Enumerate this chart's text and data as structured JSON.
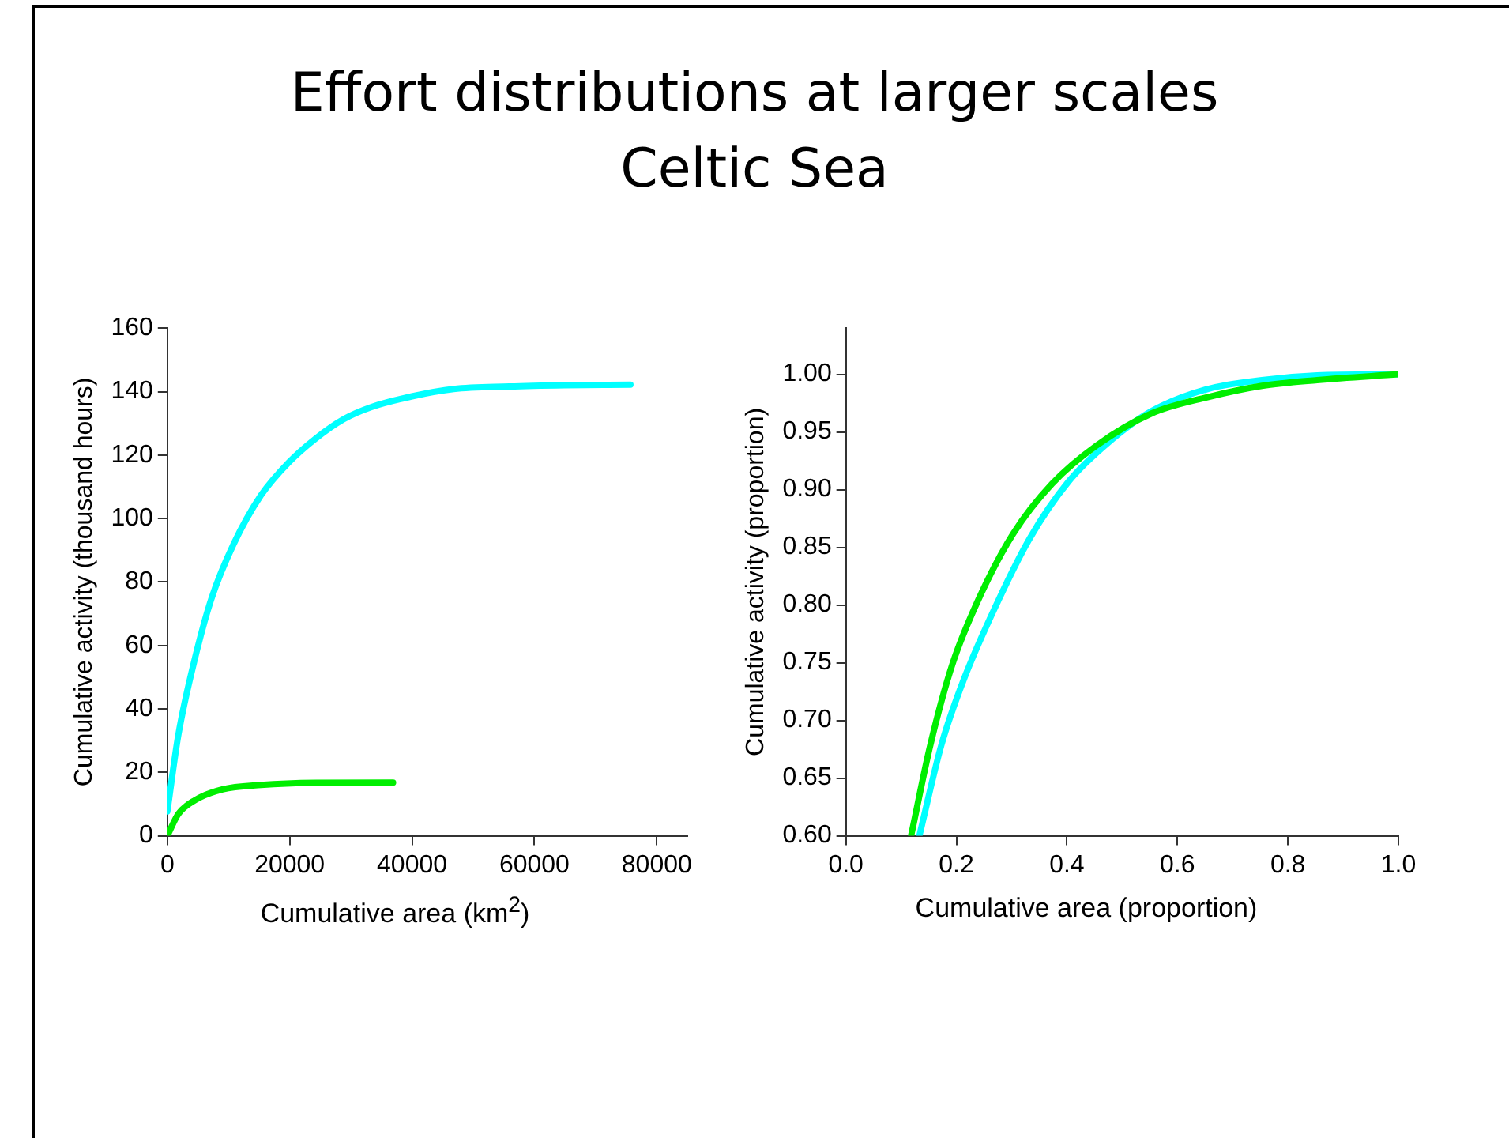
{
  "chart_data": [
    {
      "type": "line",
      "title": "Effort distributions at larger scales",
      "subtitle": "Celtic Sea",
      "xlabel": "Cumulative area (km$^{2}$)",
      "ylabel": "Cumulative activity (thousand hours)",
      "xlim": [
        0,
        85000
      ],
      "xticks": [
        0,
        20000,
        40000,
        60000,
        80000
      ],
      "ylim": [
        0,
        160
      ],
      "yticks": [
        0,
        20,
        40,
        60,
        80,
        100,
        120,
        140,
        160
      ],
      "grid": false,
      "legend": false,
      "marker": "none",
      "line_style": "solid",
      "series": [
        {
          "color": "#00ffff",
          "x": [
            0,
            1800,
            4500,
            7200,
            10800,
            15300,
            19800,
            24300,
            28800,
            33300,
            40000,
            46800,
            55900,
            64900,
            75700
          ],
          "values": [
            7.7,
            31.8,
            55.8,
            74.7,
            91.8,
            107.3,
            117.6,
            125.3,
            131.3,
            135.1,
            138.5,
            140.8,
            141.6,
            142,
            142.2
          ]
        },
        {
          "color": "#00ee00",
          "x": [
            0,
            1800,
            4500,
            9000,
            15300,
            24300,
            36900
          ],
          "values": [
            0,
            6.9,
            11.2,
            14.6,
            16,
            16.7,
            16.8
          ]
        }
      ]
    },
    {
      "type": "line",
      "xlabel": "Cumulative area (proportion)",
      "ylabel": "Cumulative activity (proportion)",
      "xlim": [
        0,
        1
      ],
      "xticks": [
        {
          "value": 0,
          "label": "0.0"
        },
        {
          "value": 0.2,
          "label": "0.2"
        },
        {
          "value": 0.4,
          "label": "0.4"
        },
        {
          "value": 0.6,
          "label": "0.6"
        },
        {
          "value": 0.8,
          "label": "0.8"
        },
        {
          "value": 1,
          "label": "1.0"
        }
      ],
      "ylim": [
        0.6,
        1.04
      ],
      "yticks": [
        {
          "value": 0.6,
          "label": "0.60"
        },
        {
          "value": 0.65,
          "label": "0.65"
        },
        {
          "value": 0.7,
          "label": "0.70"
        },
        {
          "value": 0.75,
          "label": "0.75"
        },
        {
          "value": 0.8,
          "label": "0.80"
        },
        {
          "value": 0.85,
          "label": "0.85"
        },
        {
          "value": 0.9,
          "label": "0.90"
        },
        {
          "value": 0.95,
          "label": "0.95"
        },
        {
          "value": 1,
          "label": "1.00"
        }
      ],
      "grid": false,
      "legend": false,
      "marker": "none",
      "line_style": "solid",
      "series": [
        {
          "color": "#00ffff",
          "x": [
            0.133,
            0.173,
            0.213,
            0.273,
            0.333,
            0.403,
            0.473,
            0.553,
            0.653,
            0.753,
            0.853,
            1
          ],
          "values": [
            0.6,
            0.679,
            0.735,
            0.801,
            0.858,
            0.907,
            0.94,
            0.968,
            0.987,
            0.995,
            0.999,
            1
          ]
        },
        {
          "color": "#00ee00",
          "x": [
            0.118,
            0.153,
            0.193,
            0.243,
            0.303,
            0.373,
            0.453,
            0.553,
            0.653,
            0.753,
            0.853,
            1
          ],
          "values": [
            0.6,
            0.679,
            0.749,
            0.808,
            0.862,
            0.905,
            0.938,
            0.966,
            0.98,
            0.99,
            0.995,
            1
          ]
        }
      ]
    }
  ]
}
